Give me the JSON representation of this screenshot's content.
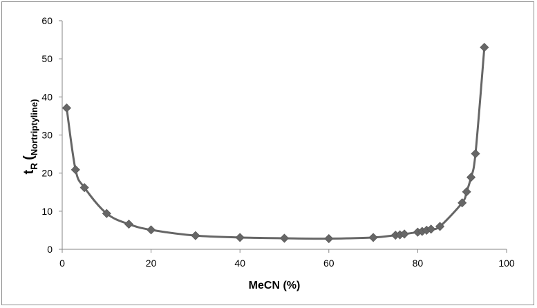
{
  "chart_data": {
    "type": "line",
    "title": "",
    "xlabel": "MeCN (%)",
    "ylabel": {
      "main": "t",
      "sub_r": "R",
      "paren": "(",
      "sub_compound": "Nortriptyline)"
    },
    "xlim": [
      0,
      100
    ],
    "ylim": [
      0,
      60
    ],
    "xticks": [
      0,
      20,
      40,
      60,
      80,
      100
    ],
    "yticks": [
      0,
      10,
      20,
      30,
      40,
      50,
      60
    ],
    "grid": false,
    "legend": "none",
    "series": [
      {
        "color": "#666666",
        "marker": "diamond",
        "points": [
          {
            "x": 1,
            "y": 37.1
          },
          {
            "x": 3,
            "y": 20.9
          },
          {
            "x": 5,
            "y": 16.2
          },
          {
            "x": 10,
            "y": 9.4
          },
          {
            "x": 15,
            "y": 6.6
          },
          {
            "x": 20,
            "y": 5.1
          },
          {
            "x": 30,
            "y": 3.6
          },
          {
            "x": 40,
            "y": 3.1
          },
          {
            "x": 50,
            "y": 2.9
          },
          {
            "x": 60,
            "y": 2.8
          },
          {
            "x": 70,
            "y": 3.1
          },
          {
            "x": 75,
            "y": 3.7
          },
          {
            "x": 76,
            "y": 3.8
          },
          {
            "x": 77,
            "y": 4.0
          },
          {
            "x": 80,
            "y": 4.5
          },
          {
            "x": 81,
            "y": 4.7
          },
          {
            "x": 82,
            "y": 5.0
          },
          {
            "x": 83,
            "y": 5.3
          },
          {
            "x": 85,
            "y": 6.0
          },
          {
            "x": 90,
            "y": 12.2
          },
          {
            "x": 91,
            "y": 15.1
          },
          {
            "x": 92,
            "y": 18.9
          },
          {
            "x": 93,
            "y": 25.1
          },
          {
            "x": 95,
            "y": 53.0
          }
        ]
      }
    ]
  }
}
